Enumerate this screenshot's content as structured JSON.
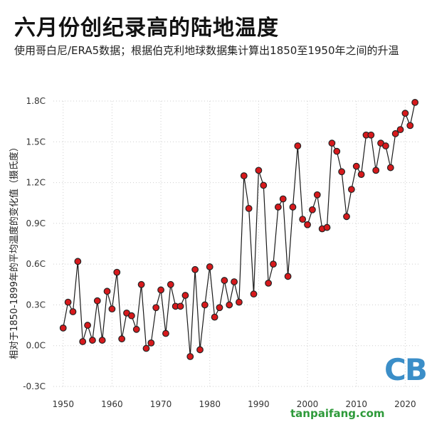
{
  "chart_data": {
    "type": "scatter",
    "title": "六月份创纪录高的陆地温度",
    "subtitle": "使用哥白尼/ERA5数据；根据伯克利地球数据集计算出1850至1950年之间的升温",
    "ylabel": "相对于1850-1899年的平均温度的变化值（摄氏度）",
    "xlabel": "",
    "xlim": [
      1948,
      2023
    ],
    "ylim": [
      -0.3,
      1.8
    ],
    "x_ticks": [
      1950,
      1960,
      1970,
      1980,
      1990,
      2000,
      2010,
      2020
    ],
    "y_ticks": [
      -0.3,
      0.0,
      0.3,
      0.6,
      0.9,
      1.2,
      1.5,
      1.8
    ],
    "y_tick_labels": [
      "-0.3C",
      "0.0C",
      "0.3C",
      "0.6C",
      "0.9C",
      "1.2C",
      "1.5C",
      "1.8C"
    ],
    "grid": true,
    "marker_color": "#d7191c",
    "line_color": "#1a1a1a",
    "series": [
      {
        "x": [
          1950,
          1951,
          1952,
          1953,
          1954,
          1955,
          1956,
          1957,
          1958,
          1959,
          1960,
          1961,
          1962,
          1963,
          1964,
          1965,
          1966,
          1967,
          1968,
          1969,
          1970,
          1971,
          1972,
          1973,
          1974,
          1975,
          1976,
          1977,
          1978,
          1979,
          1980,
          1981,
          1982,
          1983,
          1984,
          1985,
          1986,
          1987,
          1988,
          1989,
          1990,
          1991,
          1992,
          1993,
          1994,
          1995,
          1996,
          1997,
          1998,
          1999,
          2000,
          2001,
          2002,
          2003,
          2004,
          2005,
          2006,
          2007,
          2008,
          2009,
          2010,
          2011,
          2012,
          2013,
          2014,
          2015,
          2016,
          2017,
          2018,
          2019,
          2020,
          2021,
          2022
        ],
        "y": [
          0.13,
          0.32,
          0.25,
          0.62,
          0.03,
          0.15,
          0.04,
          0.33,
          0.04,
          0.4,
          0.27,
          0.54,
          0.05,
          0.24,
          0.22,
          0.12,
          0.45,
          -0.02,
          0.02,
          0.28,
          0.41,
          0.09,
          0.45,
          0.29,
          0.29,
          0.37,
          -0.08,
          0.56,
          -0.03,
          0.3,
          0.58,
          0.21,
          0.28,
          0.48,
          0.3,
          0.47,
          0.32,
          1.25,
          1.01,
          0.38,
          1.29,
          1.18,
          0.46,
          0.6,
          1.02,
          1.08,
          0.51,
          1.02,
          1.47,
          0.93,
          0.89,
          1.0,
          1.11,
          0.86,
          0.87,
          1.49,
          1.43,
          1.28,
          0.95,
          1.15,
          1.32,
          1.26,
          1.55,
          1.55,
          1.29,
          1.49,
          1.47,
          1.31,
          1.56,
          1.59,
          1.71,
          1.62,
          1.79
        ]
      }
    ]
  },
  "logo": {
    "text": "CB",
    "color": "#3b8ec8"
  },
  "watermark": {
    "text": "tanpaifang.com",
    "color": "#2e9a3a"
  }
}
